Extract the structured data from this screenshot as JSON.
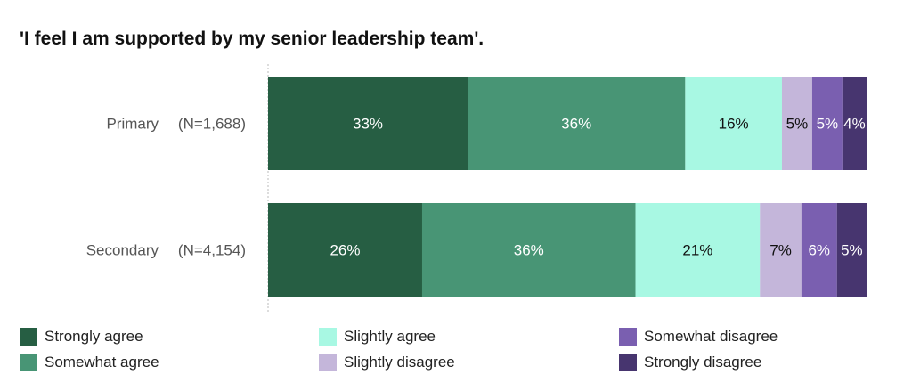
{
  "chart_data": {
    "type": "bar",
    "orientation": "horizontal-stacked-100",
    "title": "'I feel I am supported by my senior leadership team'.",
    "categories": [
      {
        "name": "Primary",
        "n": "(N=1,688)"
      },
      {
        "name": "Secondary",
        "n": "(N=4,154)"
      }
    ],
    "series": [
      {
        "name": "Strongly agree",
        "color": "#265e43",
        "label_color": "#ffffff",
        "values": [
          33,
          26
        ]
      },
      {
        "name": "Somewhat agree",
        "color": "#489575",
        "label_color": "#ffffff",
        "values": [
          36,
          36
        ]
      },
      {
        "name": "Slightly agree",
        "color": "#a8f8e3",
        "label_color": "#111111",
        "values": [
          16,
          21
        ]
      },
      {
        "name": "Slightly disagree",
        "color": "#c4b6da",
        "label_color": "#111111",
        "values": [
          5,
          7
        ]
      },
      {
        "name": "Somewhat disagree",
        "color": "#7a5fb0",
        "label_color": "#ffffff",
        "values": [
          5,
          6
        ]
      },
      {
        "name": "Strongly disagree",
        "color": "#47356f",
        "label_color": "#ffffff",
        "values": [
          4,
          5
        ]
      }
    ],
    "label_suffix": "%",
    "legend": "bottom"
  }
}
